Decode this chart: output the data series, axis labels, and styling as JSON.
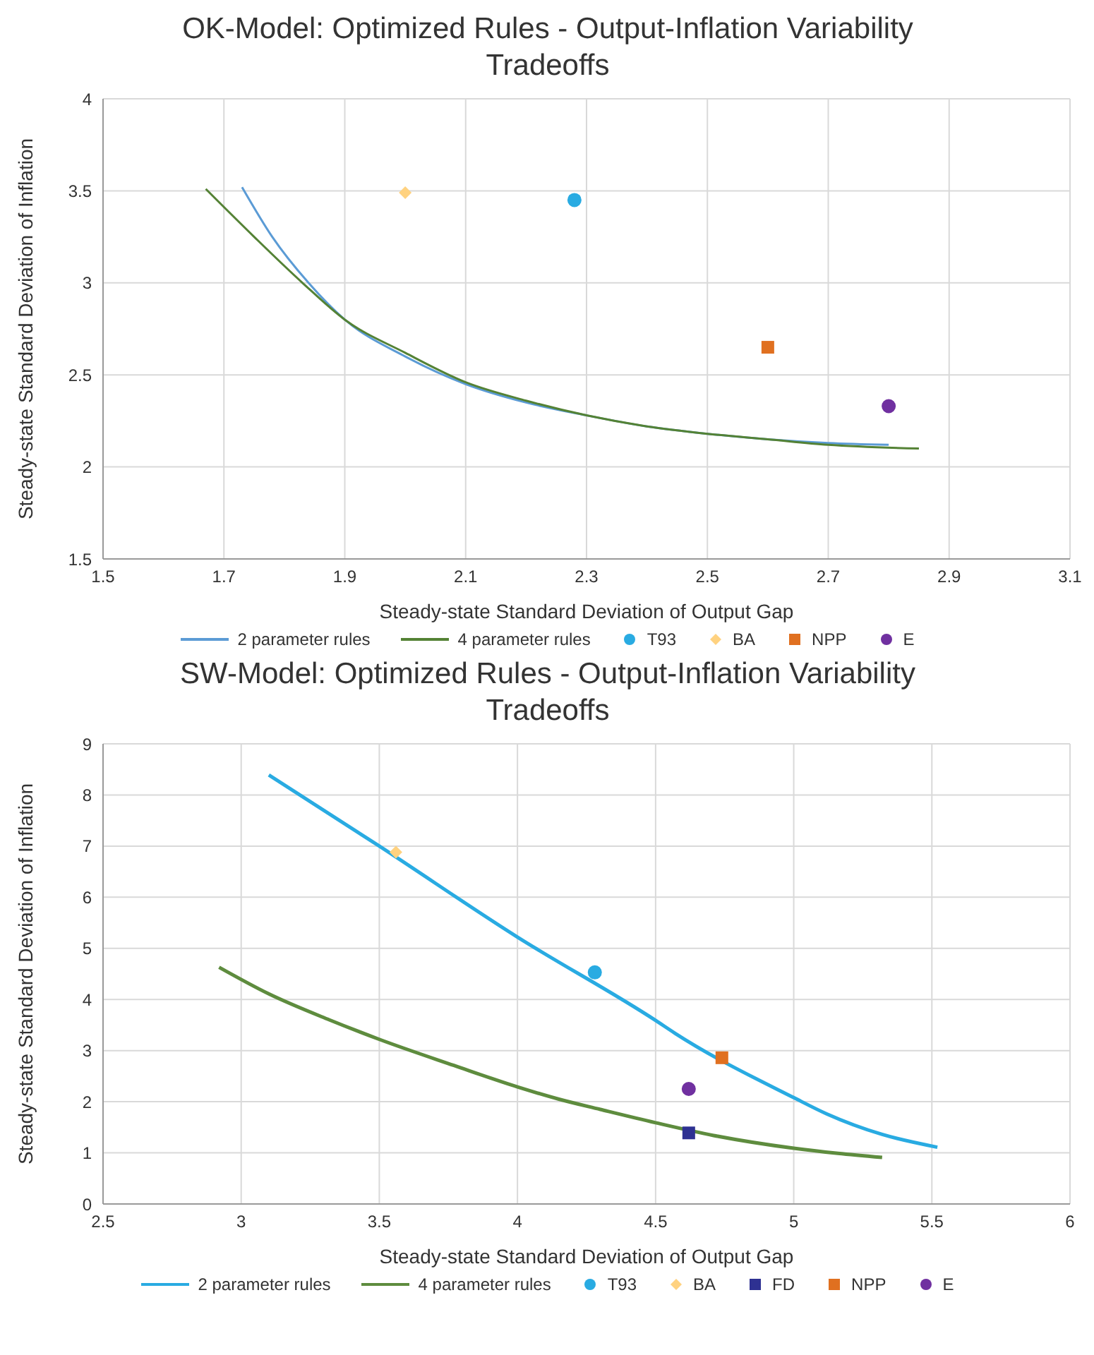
{
  "chart_data": [
    {
      "type": "line",
      "title": "OK-Model: Optimized Rules -  Output-Inflation Variability Tradeoffs",
      "xlabel": "Steady-state Standard Deviation of Output Gap",
      "ylabel": "Steady-state Standard Deviation of Inflation",
      "xlim": [
        1.5,
        3.1
      ],
      "xticks": [
        1.5,
        1.7,
        1.9,
        2.1,
        2.3,
        2.5,
        2.7,
        2.9,
        3.1
      ],
      "ylim": [
        1.5,
        4
      ],
      "yticks": [
        1.5,
        2,
        2.5,
        3,
        3.5,
        4
      ],
      "grid": true,
      "legend": "bottom",
      "series": [
        {
          "name": "2 parameter rules",
          "marker": "none",
          "color": "#5b9bd5",
          "x": [
            1.73,
            1.78,
            1.84,
            1.9,
            2.0,
            2.1,
            2.2,
            2.3,
            2.4,
            2.5,
            2.6,
            2.7,
            2.8
          ],
          "values": [
            3.52,
            3.25,
            3.0,
            2.8,
            2.6,
            2.45,
            2.35,
            2.28,
            2.22,
            2.18,
            2.15,
            2.13,
            2.12
          ]
        },
        {
          "name": "4 parameter rules",
          "marker": "none",
          "color": "#548235",
          "x": [
            1.67,
            1.75,
            1.83,
            1.9,
            2.0,
            2.1,
            2.2,
            2.3,
            2.4,
            2.5,
            2.6,
            2.7,
            2.85
          ],
          "values": [
            3.51,
            3.25,
            3.0,
            2.8,
            2.62,
            2.46,
            2.36,
            2.28,
            2.22,
            2.18,
            2.15,
            2.12,
            2.1
          ]
        },
        {
          "name": "T93",
          "type": "scatter",
          "marker": "circle",
          "color": "#29abe2",
          "x": [
            2.28
          ],
          "values": [
            3.45
          ]
        },
        {
          "name": "BA",
          "type": "scatter",
          "marker": "diamond",
          "color": "#ffd280",
          "x": [
            2.0
          ],
          "values": [
            3.49
          ]
        },
        {
          "name": "NPP",
          "type": "scatter",
          "marker": "square",
          "color": "#e07020",
          "x": [
            2.6
          ],
          "values": [
            2.65
          ]
        },
        {
          "name": "E",
          "type": "scatter",
          "marker": "circle",
          "color": "#7030a0",
          "x": [
            2.8
          ],
          "values": [
            2.33
          ]
        }
      ]
    },
    {
      "type": "line",
      "title": "SW-Model: Optimized Rules - Output-Inflation Variability Tradeoffs",
      "xlabel": "Steady-state Standard Deviation of Output Gap",
      "ylabel": "Steady-state Standard Deviation of Inflation",
      "xlim": [
        2.5,
        6
      ],
      "xticks": [
        2.5,
        3,
        3.5,
        4,
        4.5,
        5,
        5.5,
        6
      ],
      "ylim": [
        0,
        9
      ],
      "yticks": [
        0,
        1,
        2,
        3,
        4,
        5,
        6,
        7,
        8,
        9
      ],
      "grid": true,
      "legend": "bottom",
      "series": [
        {
          "name": "2 parameter rules",
          "marker": "none",
          "color": "#29abe2",
          "x": [
            3.1,
            3.5,
            4.0,
            4.5,
            4.57,
            5.0,
            5.12,
            5.32,
            5.52
          ],
          "values": [
            8.39,
            7.0,
            5.22,
            3.59,
            3.34,
            2.08,
            1.76,
            1.36,
            1.11
          ]
        },
        {
          "name": "4 parameter rules",
          "marker": "none",
          "color": "#5e8c3e",
          "x": [
            2.92,
            3.1,
            3.32,
            3.5,
            3.77,
            4.0,
            4.15,
            4.3,
            4.5,
            4.71,
            5.0,
            5.16,
            5.32
          ],
          "values": [
            4.63,
            4.11,
            3.6,
            3.22,
            2.71,
            2.29,
            2.05,
            1.85,
            1.59,
            1.34,
            1.09,
            0.99,
            0.91
          ]
        },
        {
          "name": "T93",
          "type": "scatter",
          "marker": "circle",
          "color": "#29abe2",
          "x": [
            4.28
          ],
          "values": [
            4.53
          ]
        },
        {
          "name": "BA",
          "type": "scatter",
          "marker": "diamond",
          "color": "#ffd280",
          "x": [
            3.56
          ],
          "values": [
            6.88
          ]
        },
        {
          "name": "FD",
          "type": "scatter",
          "marker": "square",
          "color": "#2e3192",
          "x": [
            4.62
          ],
          "values": [
            1.39
          ]
        },
        {
          "name": "NPP",
          "type": "scatter",
          "marker": "square",
          "color": "#e07020",
          "x": [
            4.74
          ],
          "values": [
            2.86
          ]
        },
        {
          "name": "E",
          "type": "scatter",
          "marker": "circle",
          "color": "#7030a0",
          "x": [
            4.62
          ],
          "values": [
            2.25
          ]
        }
      ]
    }
  ]
}
